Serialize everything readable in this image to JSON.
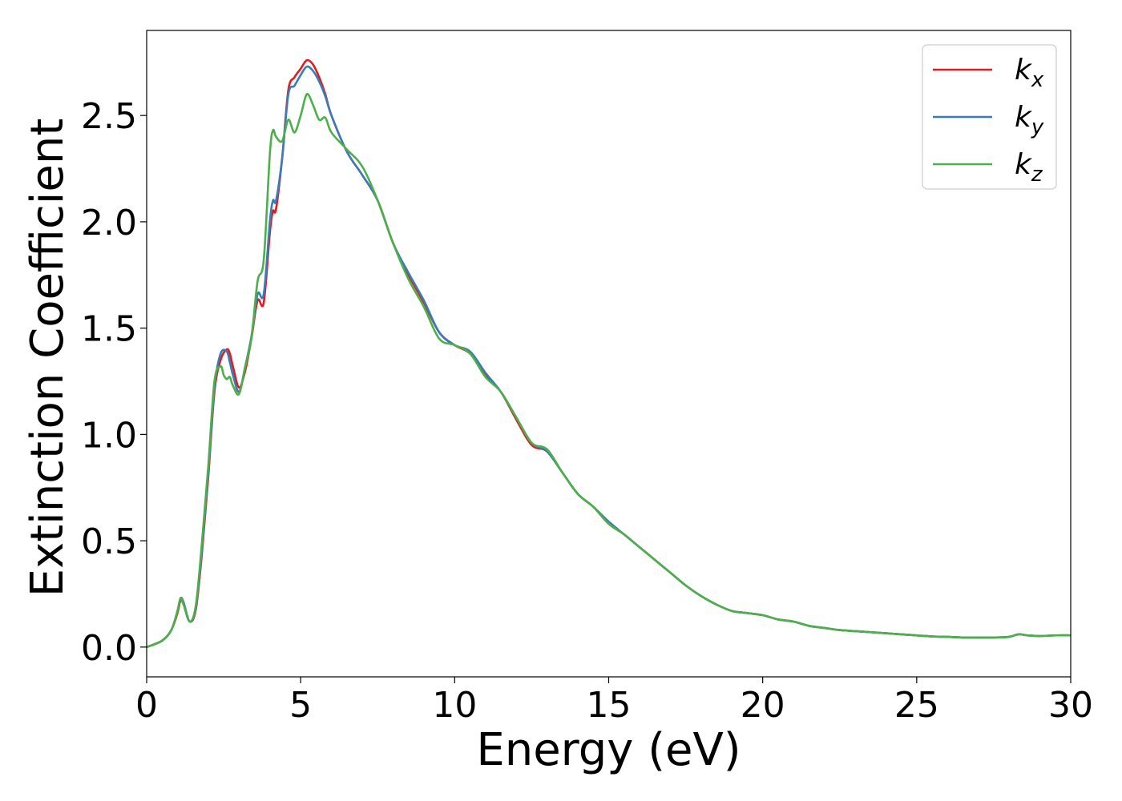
{
  "chart_data": {
    "type": "line",
    "title": "",
    "xlabel": "Energy (eV)",
    "ylabel": "Extinction Coefficient",
    "xlim": [
      0,
      30
    ],
    "ylim": [
      -0.14,
      2.9
    ],
    "xticks": [
      0,
      5,
      10,
      15,
      20,
      25,
      30
    ],
    "xtick_labels": [
      "0",
      "5",
      "10",
      "15",
      "20",
      "25",
      "30"
    ],
    "yticks": [
      0.0,
      0.5,
      1.0,
      1.5,
      2.0,
      2.5
    ],
    "ytick_labels": [
      "0.0",
      "0.5",
      "1.0",
      "1.5",
      "2.0",
      "2.5"
    ],
    "grid": false,
    "legend_position": "top-right",
    "series": [
      {
        "name": "k_x",
        "label_main": "k",
        "label_sub": "x",
        "color": "#e41a1c",
        "x": [
          0,
          0.5,
          0.8,
          1.0,
          1.1,
          1.2,
          1.4,
          1.6,
          1.8,
          2.0,
          2.2,
          2.4,
          2.6,
          2.7,
          2.8,
          3.0,
          3.2,
          3.4,
          3.6,
          3.8,
          4.0,
          4.1,
          4.2,
          4.4,
          4.6,
          4.8,
          5.0,
          5.2,
          5.4,
          5.6,
          5.8,
          6.0,
          6.5,
          7.0,
          7.5,
          8.0,
          8.5,
          9.0,
          9.5,
          10.0,
          10.5,
          11.0,
          11.5,
          12.0,
          12.5,
          13.0,
          13.5,
          14.0,
          14.5,
          15.0,
          15.5,
          16.0,
          16.5,
          17.0,
          17.5,
          18.0,
          18.5,
          19.0,
          19.5,
          20.0,
          20.5,
          21.0,
          21.5,
          22.0,
          22.5,
          23.0,
          23.5,
          24.0,
          24.5,
          25.0,
          25.5,
          26.0,
          26.5,
          27.0,
          27.5,
          28.0,
          28.3,
          28.6,
          29.0,
          29.5,
          30.0
        ],
        "y": [
          0.0,
          0.03,
          0.08,
          0.16,
          0.22,
          0.2,
          0.12,
          0.18,
          0.45,
          0.8,
          1.2,
          1.35,
          1.4,
          1.38,
          1.32,
          1.22,
          1.3,
          1.45,
          1.63,
          1.62,
          1.95,
          2.05,
          2.06,
          2.3,
          2.62,
          2.68,
          2.72,
          2.76,
          2.74,
          2.68,
          2.6,
          2.5,
          2.33,
          2.22,
          2.1,
          1.9,
          1.75,
          1.62,
          1.48,
          1.42,
          1.38,
          1.28,
          1.2,
          1.07,
          0.95,
          0.92,
          0.82,
          0.72,
          0.66,
          0.58,
          0.53,
          0.47,
          0.41,
          0.35,
          0.29,
          0.24,
          0.2,
          0.17,
          0.16,
          0.15,
          0.13,
          0.12,
          0.1,
          0.09,
          0.08,
          0.075,
          0.07,
          0.065,
          0.06,
          0.055,
          0.05,
          0.048,
          0.045,
          0.045,
          0.045,
          0.048,
          0.06,
          0.055,
          0.052,
          0.055,
          0.055
        ]
      },
      {
        "name": "k_y",
        "label_main": "k",
        "label_sub": "y",
        "color": "#377eb8",
        "x": [
          0,
          0.5,
          0.8,
          1.0,
          1.1,
          1.2,
          1.4,
          1.6,
          1.8,
          2.0,
          2.2,
          2.4,
          2.6,
          2.7,
          2.8,
          3.0,
          3.2,
          3.4,
          3.6,
          3.8,
          4.0,
          4.1,
          4.2,
          4.4,
          4.6,
          4.8,
          5.0,
          5.2,
          5.4,
          5.6,
          5.8,
          6.0,
          6.5,
          7.0,
          7.5,
          8.0,
          8.5,
          9.0,
          9.5,
          10.0,
          10.5,
          11.0,
          11.5,
          12.0,
          12.5,
          13.0,
          13.5,
          14.0,
          14.5,
          15.0,
          15.5,
          16.0,
          16.5,
          17.0,
          17.5,
          18.0,
          18.5,
          19.0,
          19.5,
          20.0,
          20.5,
          21.0,
          21.5,
          22.0,
          22.5,
          23.0,
          23.5,
          24.0,
          24.5,
          25.0,
          25.5,
          26.0,
          26.5,
          27.0,
          27.5,
          28.0,
          28.3,
          28.6,
          29.0,
          29.5,
          30.0
        ],
        "y": [
          0.0,
          0.03,
          0.08,
          0.17,
          0.23,
          0.21,
          0.12,
          0.19,
          0.47,
          0.82,
          1.22,
          1.38,
          1.39,
          1.34,
          1.28,
          1.2,
          1.32,
          1.46,
          1.66,
          1.66,
          2.0,
          2.1,
          2.1,
          2.3,
          2.6,
          2.64,
          2.69,
          2.73,
          2.71,
          2.66,
          2.59,
          2.5,
          2.33,
          2.22,
          2.1,
          1.9,
          1.76,
          1.63,
          1.48,
          1.42,
          1.39,
          1.29,
          1.2,
          1.08,
          0.96,
          0.92,
          0.82,
          0.72,
          0.66,
          0.59,
          0.53,
          0.47,
          0.41,
          0.35,
          0.29,
          0.24,
          0.2,
          0.17,
          0.16,
          0.15,
          0.13,
          0.12,
          0.1,
          0.09,
          0.08,
          0.075,
          0.07,
          0.065,
          0.06,
          0.055,
          0.05,
          0.048,
          0.045,
          0.045,
          0.045,
          0.048,
          0.06,
          0.055,
          0.052,
          0.055,
          0.055
        ]
      },
      {
        "name": "k_z",
        "label_main": "k",
        "label_sub": "z",
        "color": "#4daf4a",
        "x": [
          0,
          0.5,
          0.8,
          1.0,
          1.1,
          1.2,
          1.4,
          1.6,
          1.8,
          2.0,
          2.2,
          2.4,
          2.5,
          2.6,
          2.7,
          2.8,
          3.0,
          3.2,
          3.4,
          3.6,
          3.8,
          4.0,
          4.1,
          4.2,
          4.4,
          4.6,
          4.8,
          5.0,
          5.2,
          5.4,
          5.6,
          5.8,
          6.0,
          6.5,
          7.0,
          7.5,
          8.0,
          8.5,
          9.0,
          9.5,
          10.0,
          10.5,
          11.0,
          11.5,
          12.0,
          12.5,
          13.0,
          13.5,
          14.0,
          14.5,
          15.0,
          15.5,
          16.0,
          16.5,
          17.0,
          17.5,
          18.0,
          18.5,
          19.0,
          19.5,
          20.0,
          20.5,
          21.0,
          21.5,
          22.0,
          22.5,
          23.0,
          23.5,
          24.0,
          24.5,
          25.0,
          25.5,
          26.0,
          26.5,
          27.0,
          27.5,
          28.0,
          28.3,
          28.6,
          29.0,
          29.5,
          30.0
        ],
        "y": [
          0.0,
          0.03,
          0.08,
          0.17,
          0.23,
          0.2,
          0.12,
          0.2,
          0.5,
          0.85,
          1.25,
          1.32,
          1.28,
          1.26,
          1.27,
          1.23,
          1.19,
          1.32,
          1.45,
          1.72,
          1.82,
          2.32,
          2.43,
          2.4,
          2.38,
          2.48,
          2.42,
          2.5,
          2.6,
          2.55,
          2.48,
          2.49,
          2.42,
          2.34,
          2.26,
          2.1,
          1.9,
          1.73,
          1.6,
          1.45,
          1.42,
          1.38,
          1.27,
          1.2,
          1.08,
          0.96,
          0.93,
          0.82,
          0.72,
          0.66,
          0.58,
          0.53,
          0.47,
          0.41,
          0.35,
          0.29,
          0.24,
          0.2,
          0.17,
          0.16,
          0.15,
          0.13,
          0.12,
          0.1,
          0.09,
          0.08,
          0.075,
          0.07,
          0.065,
          0.06,
          0.055,
          0.05,
          0.048,
          0.045,
          0.045,
          0.045,
          0.048,
          0.06,
          0.055,
          0.052,
          0.055,
          0.055
        ]
      }
    ]
  }
}
